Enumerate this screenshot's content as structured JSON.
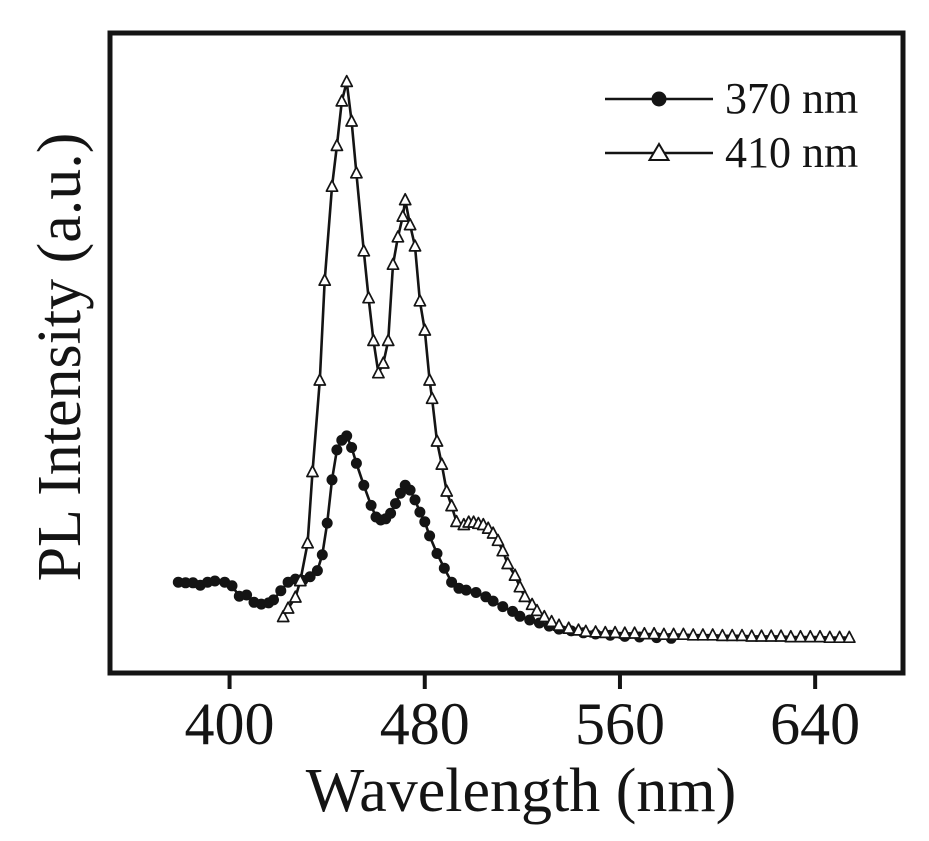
{
  "figure": {
    "background_color": "#ffffff",
    "ink_color": "#141414"
  },
  "chart_data": {
    "type": "line",
    "title": "",
    "xlabel": "Wavelength (nm)",
    "ylabel": "PL Intensity (a.u.)",
    "x_unit": "nm",
    "y_unit": "a.u.",
    "xlim": [
      351,
      676
    ],
    "ylim": [
      0,
      105
    ],
    "xticks": [
      400,
      480,
      560,
      640
    ],
    "xtick_labels": [
      "400",
      "480",
      "560",
      "640"
    ],
    "yticks": [],
    "grid": false,
    "legend_position": "upper right",
    "series": [
      {
        "name": "370 nm",
        "marker": "circle",
        "marker_fill": "#141414",
        "line_color": "#141414",
        "points": [
          [
            379,
            14.9
          ],
          [
            382,
            14.8
          ],
          [
            385,
            14.8
          ],
          [
            388,
            14.4
          ],
          [
            391,
            14.9
          ],
          [
            394,
            15.1
          ],
          [
            398,
            14.9
          ],
          [
            401,
            14.3
          ],
          [
            404,
            12.6
          ],
          [
            407,
            12.8
          ],
          [
            410,
            11.6
          ],
          [
            413,
            11.3
          ],
          [
            416,
            11.5
          ],
          [
            418,
            12.0
          ],
          [
            421,
            13.5
          ],
          [
            424,
            14.9
          ],
          [
            427,
            15.4
          ],
          [
            430,
            15.2
          ],
          [
            433,
            15.8
          ],
          [
            436,
            16.8
          ],
          [
            438,
            19.4
          ],
          [
            440,
            24.6
          ],
          [
            442,
            31.7
          ],
          [
            444,
            36.6
          ],
          [
            446,
            38.2
          ],
          [
            448,
            38.9
          ],
          [
            450,
            37.0
          ],
          [
            452,
            34.4
          ],
          [
            455,
            30.8
          ],
          [
            458,
            27.5
          ],
          [
            460,
            25.6
          ],
          [
            462,
            25.1
          ],
          [
            464,
            25.3
          ],
          [
            466,
            26.2
          ],
          [
            468,
            27.8
          ],
          [
            470,
            29.5
          ],
          [
            472,
            30.8
          ],
          [
            474,
            30.0
          ],
          [
            476,
            28.4
          ],
          [
            478,
            26.4
          ],
          [
            480,
            24.8
          ],
          [
            482,
            22.5
          ],
          [
            485,
            19.6
          ],
          [
            488,
            17.2
          ],
          [
            491,
            14.9
          ],
          [
            494,
            13.9
          ],
          [
            497,
            13.6
          ],
          [
            501,
            13.2
          ],
          [
            505,
            12.5
          ],
          [
            508,
            11.8
          ],
          [
            512,
            10.9
          ],
          [
            516,
            10.1
          ],
          [
            519,
            9.3
          ],
          [
            523,
            8.7
          ],
          [
            527,
            8.2
          ],
          [
            531,
            7.7
          ],
          [
            535,
            7.2
          ],
          [
            540,
            6.9
          ],
          [
            545,
            6.6
          ],
          [
            550,
            6.4
          ],
          [
            556,
            6.2
          ],
          [
            562,
            6.0
          ],
          [
            568,
            5.9
          ],
          [
            575,
            5.8
          ],
          [
            581,
            5.7
          ]
        ]
      },
      {
        "name": "410 nm",
        "marker": "triangle-open",
        "marker_fill": "#ffffff",
        "line_color": "#141414",
        "points": [
          [
            422,
            9.2
          ],
          [
            424,
            10.6
          ],
          [
            427,
            12.4
          ],
          [
            429,
            15.1
          ],
          [
            432,
            21.3
          ],
          [
            434,
            33.0
          ],
          [
            437,
            48.0
          ],
          [
            439,
            64.4
          ],
          [
            442,
            79.8
          ],
          [
            444,
            86.5
          ],
          [
            446,
            93.8
          ],
          [
            448,
            97.0
          ],
          [
            450,
            90.5
          ],
          [
            452,
            82.0
          ],
          [
            455,
            69.2
          ],
          [
            457,
            61.5
          ],
          [
            459,
            54.5
          ],
          [
            461,
            49.2
          ],
          [
            463,
            50.8
          ],
          [
            465,
            54.5
          ],
          [
            467,
            67.0
          ],
          [
            469,
            71.5
          ],
          [
            471,
            74.9
          ],
          [
            472,
            77.6
          ],
          [
            474,
            73.5
          ],
          [
            476,
            70.0
          ],
          [
            478,
            61.0
          ],
          [
            480,
            56.2
          ],
          [
            482,
            48.0
          ],
          [
            483,
            45.0
          ],
          [
            485,
            38.0
          ],
          [
            487,
            34.2
          ],
          [
            489,
            29.8
          ],
          [
            491,
            27.4
          ],
          [
            493,
            24.8
          ],
          [
            496,
            24.3
          ],
          [
            498,
            24.7
          ],
          [
            500,
            24.7
          ],
          [
            502,
            24.5
          ],
          [
            504,
            24.3
          ],
          [
            506,
            23.7
          ],
          [
            508,
            22.9
          ],
          [
            510,
            21.7
          ],
          [
            512,
            20.0
          ],
          [
            514,
            17.9
          ],
          [
            517,
            16.0
          ],
          [
            519,
            14.1
          ],
          [
            521,
            12.5
          ],
          [
            524,
            11.2
          ],
          [
            526,
            10.2
          ],
          [
            529,
            9.2
          ],
          [
            532,
            8.4
          ],
          [
            535,
            7.8
          ],
          [
            539,
            7.3
          ],
          [
            543,
            7.0
          ],
          [
            546,
            6.8
          ],
          [
            550,
            6.7
          ],
          [
            554,
            6.6
          ],
          [
            558,
            6.6
          ],
          [
            562,
            6.5
          ],
          [
            566,
            6.5
          ],
          [
            570,
            6.4
          ],
          [
            574,
            6.4
          ],
          [
            578,
            6.3
          ],
          [
            582,
            6.3
          ],
          [
            586,
            6.3
          ],
          [
            590,
            6.2
          ],
          [
            594,
            6.2
          ],
          [
            598,
            6.2
          ],
          [
            602,
            6.1
          ],
          [
            606,
            6.1
          ],
          [
            610,
            6.1
          ],
          [
            614,
            6.0
          ],
          [
            618,
            6.0
          ],
          [
            622,
            6.0
          ],
          [
            626,
            6.0
          ],
          [
            630,
            5.9
          ],
          [
            634,
            5.9
          ],
          [
            638,
            5.9
          ],
          [
            642,
            5.9
          ],
          [
            646,
            5.8
          ],
          [
            650,
            5.8
          ],
          [
            654,
            5.8
          ]
        ]
      }
    ]
  }
}
